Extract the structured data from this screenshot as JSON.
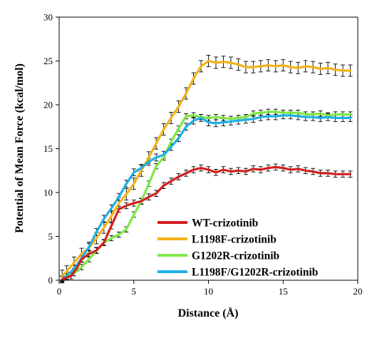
{
  "chart_data": {
    "type": "line",
    "title": "",
    "xlabel": "Distance (Å)",
    "ylabel": "Potential of Mean Force (kcal/mol)",
    "xlim": [
      0,
      20
    ],
    "ylim": [
      0,
      30
    ],
    "xticks": [
      0,
      5,
      10,
      15,
      20
    ],
    "yticks": [
      0,
      5,
      10,
      15,
      20,
      25,
      30
    ],
    "grid": false,
    "legend_position": "lower-right",
    "error_bars": true,
    "series": [
      {
        "name": "WT-crizotinib",
        "color": "#d42020",
        "x": [
          0.2,
          0.8,
          1.2,
          1.5,
          2.0,
          2.5,
          3.0,
          3.5,
          4.0,
          4.5,
          5.0,
          5.5,
          6.0,
          6.5,
          7.0,
          7.5,
          8.0,
          8.5,
          9.0,
          9.5,
          10.0,
          10.5,
          11.0,
          11.5,
          12.0,
          12.5,
          13.0,
          13.5,
          14.0,
          14.5,
          15.0,
          15.5,
          16.0,
          16.5,
          17.0,
          17.5,
          18.0,
          18.5,
          19.0,
          19.5
        ],
        "y": [
          0.1,
          0.5,
          1.4,
          2.4,
          3.0,
          3.4,
          4.3,
          6.2,
          8.1,
          8.5,
          8.8,
          9.0,
          9.5,
          9.9,
          10.8,
          11.3,
          11.8,
          12.2,
          12.6,
          12.8,
          12.6,
          12.3,
          12.6,
          12.4,
          12.5,
          12.4,
          12.7,
          12.6,
          12.8,
          12.9,
          12.8,
          12.6,
          12.7,
          12.5,
          12.4,
          12.2,
          12.2,
          12.1,
          12.1,
          12.1
        ],
        "error": 0.35
      },
      {
        "name": "L1198F-crizotinib",
        "color": "#f2b31a",
        "x": [
          0.2,
          0.5,
          1.0,
          1.5,
          2.0,
          2.5,
          3.0,
          3.5,
          4.0,
          4.5,
          5.0,
          5.5,
          6.0,
          6.5,
          7.0,
          7.5,
          8.0,
          8.5,
          9.0,
          9.5,
          10.0,
          10.5,
          11.0,
          11.5,
          12.0,
          12.5,
          13.0,
          13.5,
          14.0,
          14.5,
          15.0,
          15.5,
          16.0,
          16.5,
          17.0,
          17.5,
          18.0,
          18.5,
          19.0,
          19.5
        ],
        "y": [
          0.5,
          1.0,
          2.0,
          3.0,
          3.7,
          4.8,
          6.0,
          7.3,
          8.8,
          9.8,
          11.0,
          12.5,
          14.0,
          15.6,
          17.2,
          18.5,
          19.8,
          21.3,
          23.0,
          24.4,
          25.0,
          24.8,
          24.9,
          24.8,
          24.6,
          24.3,
          24.3,
          24.4,
          24.5,
          24.4,
          24.5,
          24.3,
          24.2,
          24.4,
          24.3,
          24.1,
          24.2,
          24.0,
          23.9,
          23.9
        ],
        "error": 0.65
      },
      {
        "name": "G1202R-crizotinib",
        "color": "#7ee843",
        "x": [
          0.2,
          0.5,
          1.0,
          1.5,
          2.0,
          2.5,
          3.0,
          3.5,
          4.0,
          4.5,
          5.0,
          5.5,
          6.0,
          6.5,
          7.0,
          7.5,
          8.0,
          8.5,
          9.0,
          9.5,
          10.0,
          10.5,
          11.0,
          11.5,
          12.0,
          12.5,
          13.0,
          13.5,
          14.0,
          14.5,
          15.0,
          15.5,
          16.0,
          16.5,
          17.0,
          17.5,
          18.0,
          18.5,
          19.0,
          19.5
        ],
        "y": [
          0.2,
          0.4,
          0.8,
          1.5,
          2.4,
          3.4,
          4.3,
          4.8,
          5.2,
          5.8,
          7.5,
          9.0,
          11.0,
          13.0,
          14.0,
          15.8,
          17.3,
          18.7,
          18.8,
          18.6,
          18.5,
          18.6,
          18.5,
          18.4,
          18.5,
          18.6,
          19.0,
          19.1,
          19.2,
          19.2,
          19.1,
          19.1,
          19.1,
          18.9,
          18.9,
          19.0,
          18.8,
          18.9,
          18.9,
          18.9
        ],
        "error": 0.3
      },
      {
        "name": "L1198F/G1202R-crizotinib",
        "color": "#1fb0e6",
        "x": [
          0.2,
          0.5,
          1.0,
          1.5,
          2.0,
          2.5,
          3.0,
          3.5,
          4.0,
          4.5,
          5.0,
          5.5,
          6.0,
          6.5,
          7.0,
          7.5,
          8.0,
          8.5,
          9.0,
          9.5,
          10.0,
          10.5,
          11.0,
          11.5,
          12.0,
          12.5,
          13.0,
          13.5,
          14.0,
          14.5,
          15.0,
          15.5,
          16.0,
          16.5,
          17.0,
          17.5,
          18.0,
          18.5,
          19.0,
          19.5
        ],
        "y": [
          0.1,
          0.5,
          1.3,
          2.5,
          3.8,
          5.5,
          7.0,
          8.2,
          9.5,
          11.0,
          12.3,
          12.8,
          13.5,
          14.0,
          14.3,
          15.2,
          16.2,
          17.5,
          18.2,
          18.5,
          18.0,
          17.9,
          18.0,
          18.1,
          18.2,
          18.3,
          18.4,
          18.6,
          18.7,
          18.7,
          18.8,
          18.8,
          18.7,
          18.6,
          18.6,
          18.5,
          18.6,
          18.5,
          18.5,
          18.5
        ],
        "error": 0.4
      }
    ]
  }
}
